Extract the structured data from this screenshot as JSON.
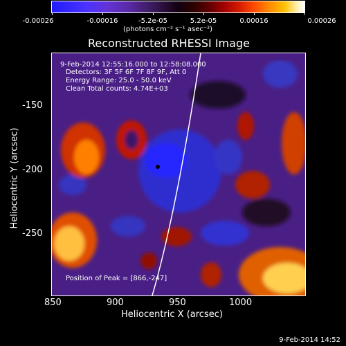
{
  "colorbar": {
    "tick_labels": [
      "-0.00026",
      "-0.00016",
      "-5.2e-05",
      "5.2e-05",
      "0.00016",
      "0.00026"
    ],
    "units": "(photons cm⁻² s⁻¹ asec⁻²)"
  },
  "title": "Reconstructed RHESSI Image",
  "info": {
    "time_range": "9-Feb-2014 12:55:16.000 to 12:58:08.000",
    "detectors": "Detectors: 3F 5F 6F 7F 8F 9F, Att 0",
    "energy_range": "Energy Range: 25.0 - 50.0 keV",
    "clean": "Clean    Total counts: 4.74E+03",
    "peak": "Position of Peak = [866,-247]"
  },
  "axes": {
    "xlabel": "Heliocentric X (arcsec)",
    "ylabel": "Heliocentric Y (arcsec)",
    "xticks": [
      "850",
      "900",
      "950",
      "1000"
    ],
    "yticks": [
      "-150",
      "-200",
      "-250"
    ]
  },
  "timestamp": "9-Feb-2014 14:52",
  "colors": {
    "background": "#000000",
    "blue": "#3030ff",
    "purple": "#5a2aa0",
    "red": "#c01000",
    "orange": "#ff8000",
    "yellow": "#ffe060"
  }
}
